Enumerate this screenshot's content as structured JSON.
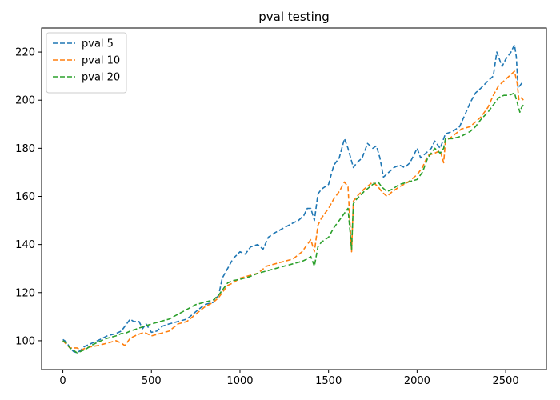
{
  "chart_data": {
    "type": "line",
    "title": "pval testing",
    "xlabel": "",
    "ylabel": "",
    "xlim": [
      -120,
      2730
    ],
    "ylim": [
      88,
      230
    ],
    "xticks": [
      0,
      500,
      1000,
      1500,
      2000,
      2500
    ],
    "yticks": [
      100,
      120,
      140,
      160,
      180,
      200,
      220
    ],
    "grid": false,
    "legend_position": "upper-left",
    "line_style": "dashed",
    "series": [
      {
        "name": "pval 5",
        "color": "#1f77b4",
        "points": [
          [
            0,
            100.5
          ],
          [
            20,
            99.5
          ],
          [
            40,
            97
          ],
          [
            60,
            95.5
          ],
          [
            80,
            95
          ],
          [
            100,
            96
          ],
          [
            120,
            97.5
          ],
          [
            150,
            98.5
          ],
          [
            180,
            99.5
          ],
          [
            210,
            100.5
          ],
          [
            250,
            102
          ],
          [
            300,
            103
          ],
          [
            330,
            104
          ],
          [
            350,
            106
          ],
          [
            380,
            109
          ],
          [
            400,
            108
          ],
          [
            430,
            108
          ],
          [
            450,
            105
          ],
          [
            470,
            107
          ],
          [
            500,
            103.5
          ],
          [
            530,
            104
          ],
          [
            560,
            106
          ],
          [
            600,
            107
          ],
          [
            650,
            108
          ],
          [
            700,
            109
          ],
          [
            750,
            112
          ],
          [
            800,
            115
          ],
          [
            850,
            116
          ],
          [
            880,
            119
          ],
          [
            900,
            126
          ],
          [
            930,
            130
          ],
          [
            960,
            134
          ],
          [
            1000,
            137
          ],
          [
            1030,
            136
          ],
          [
            1060,
            139
          ],
          [
            1100,
            140
          ],
          [
            1130,
            138
          ],
          [
            1160,
            143
          ],
          [
            1200,
            145
          ],
          [
            1250,
            147
          ],
          [
            1300,
            149
          ],
          [
            1330,
            150
          ],
          [
            1360,
            152
          ],
          [
            1380,
            155
          ],
          [
            1400,
            155
          ],
          [
            1420,
            150
          ],
          [
            1440,
            161
          ],
          [
            1460,
            163
          ],
          [
            1500,
            165
          ],
          [
            1530,
            173
          ],
          [
            1560,
            176
          ],
          [
            1590,
            184
          ],
          [
            1610,
            180
          ],
          [
            1640,
            172
          ],
          [
            1660,
            174
          ],
          [
            1690,
            176
          ],
          [
            1720,
            182
          ],
          [
            1750,
            180
          ],
          [
            1770,
            181
          ],
          [
            1790,
            176
          ],
          [
            1810,
            168
          ],
          [
            1840,
            170
          ],
          [
            1870,
            172
          ],
          [
            1900,
            173
          ],
          [
            1930,
            172
          ],
          [
            1960,
            174
          ],
          [
            2000,
            180
          ],
          [
            2020,
            176
          ],
          [
            2050,
            178
          ],
          [
            2080,
            180
          ],
          [
            2100,
            183
          ],
          [
            2130,
            180
          ],
          [
            2160,
            186
          ],
          [
            2200,
            187
          ],
          [
            2240,
            189
          ],
          [
            2270,
            194
          ],
          [
            2300,
            199
          ],
          [
            2330,
            203
          ],
          [
            2360,
            205
          ],
          [
            2400,
            208
          ],
          [
            2430,
            210
          ],
          [
            2450,
            220
          ],
          [
            2480,
            214
          ],
          [
            2500,
            217
          ],
          [
            2530,
            220
          ],
          [
            2550,
            223
          ],
          [
            2560,
            218
          ],
          [
            2570,
            205
          ],
          [
            2590,
            207
          ],
          [
            2600,
            206
          ]
        ]
      },
      {
        "name": "pval 10",
        "color": "#ff7f0e",
        "points": [
          [
            0,
            100
          ],
          [
            20,
            98.5
          ],
          [
            40,
            97
          ],
          [
            60,
            97
          ],
          [
            80,
            97
          ],
          [
            100,
            96
          ],
          [
            130,
            97
          ],
          [
            160,
            97.5
          ],
          [
            200,
            98
          ],
          [
            250,
            99
          ],
          [
            300,
            100
          ],
          [
            330,
            99
          ],
          [
            350,
            98
          ],
          [
            380,
            101
          ],
          [
            420,
            102.5
          ],
          [
            460,
            103.5
          ],
          [
            500,
            102
          ],
          [
            550,
            103
          ],
          [
            600,
            104
          ],
          [
            650,
            107
          ],
          [
            700,
            108
          ],
          [
            750,
            111
          ],
          [
            800,
            114
          ],
          [
            850,
            116
          ],
          [
            880,
            118
          ],
          [
            900,
            120
          ],
          [
            930,
            123
          ],
          [
            960,
            124
          ],
          [
            1000,
            126
          ],
          [
            1050,
            127
          ],
          [
            1100,
            128
          ],
          [
            1150,
            131
          ],
          [
            1200,
            132
          ],
          [
            1250,
            133
          ],
          [
            1300,
            134
          ],
          [
            1350,
            137
          ],
          [
            1380,
            140
          ],
          [
            1400,
            142
          ],
          [
            1420,
            137
          ],
          [
            1440,
            148
          ],
          [
            1460,
            151
          ],
          [
            1500,
            155
          ],
          [
            1530,
            159
          ],
          [
            1560,
            162
          ],
          [
            1590,
            166
          ],
          [
            1610,
            164
          ],
          [
            1630,
            137
          ],
          [
            1640,
            158
          ],
          [
            1660,
            160
          ],
          [
            1700,
            163
          ],
          [
            1750,
            166
          ],
          [
            1780,
            164
          ],
          [
            1800,
            162
          ],
          [
            1830,
            160
          ],
          [
            1860,
            162
          ],
          [
            1900,
            164
          ],
          [
            1950,
            166
          ],
          [
            2000,
            169
          ],
          [
            2030,
            172
          ],
          [
            2060,
            177
          ],
          [
            2100,
            178
          ],
          [
            2130,
            179
          ],
          [
            2150,
            174
          ],
          [
            2160,
            183
          ],
          [
            2200,
            185
          ],
          [
            2250,
            188
          ],
          [
            2300,
            189
          ],
          [
            2330,
            191
          ],
          [
            2360,
            193
          ],
          [
            2400,
            197
          ],
          [
            2430,
            202
          ],
          [
            2460,
            206
          ],
          [
            2490,
            208
          ],
          [
            2520,
            210
          ],
          [
            2550,
            212
          ],
          [
            2565,
            207
          ],
          [
            2575,
            200
          ],
          [
            2590,
            201
          ],
          [
            2600,
            200
          ]
        ]
      },
      {
        "name": "pval 20",
        "color": "#2ca02c",
        "points": [
          [
            0,
            100
          ],
          [
            20,
            99
          ],
          [
            40,
            97
          ],
          [
            60,
            96
          ],
          [
            80,
            95
          ],
          [
            100,
            95.5
          ],
          [
            130,
            96.5
          ],
          [
            160,
            98
          ],
          [
            200,
            99.5
          ],
          [
            250,
            101
          ],
          [
            300,
            102
          ],
          [
            330,
            103
          ],
          [
            350,
            103
          ],
          [
            380,
            104
          ],
          [
            420,
            105
          ],
          [
            460,
            106
          ],
          [
            500,
            107
          ],
          [
            550,
            108
          ],
          [
            600,
            109
          ],
          [
            650,
            111
          ],
          [
            700,
            113
          ],
          [
            750,
            115
          ],
          [
            800,
            116
          ],
          [
            850,
            117
          ],
          [
            880,
            119
          ],
          [
            900,
            121
          ],
          [
            930,
            124
          ],
          [
            960,
            125
          ],
          [
            1000,
            125.5
          ],
          [
            1050,
            126.5
          ],
          [
            1100,
            128
          ],
          [
            1150,
            129
          ],
          [
            1200,
            130
          ],
          [
            1250,
            131
          ],
          [
            1300,
            132
          ],
          [
            1350,
            133
          ],
          [
            1380,
            134
          ],
          [
            1400,
            135
          ],
          [
            1420,
            131
          ],
          [
            1440,
            139
          ],
          [
            1460,
            141
          ],
          [
            1500,
            143
          ],
          [
            1530,
            147
          ],
          [
            1560,
            150
          ],
          [
            1590,
            153
          ],
          [
            1610,
            155
          ],
          [
            1630,
            138
          ],
          [
            1640,
            157
          ],
          [
            1660,
            159
          ],
          [
            1700,
            162
          ],
          [
            1750,
            165
          ],
          [
            1780,
            166
          ],
          [
            1800,
            164
          ],
          [
            1830,
            162
          ],
          [
            1860,
            163
          ],
          [
            1900,
            165
          ],
          [
            1950,
            166
          ],
          [
            2000,
            167
          ],
          [
            2030,
            170
          ],
          [
            2060,
            176
          ],
          [
            2100,
            180
          ],
          [
            2130,
            178
          ],
          [
            2150,
            180
          ],
          [
            2160,
            184
          ],
          [
            2200,
            184
          ],
          [
            2250,
            185
          ],
          [
            2300,
            187
          ],
          [
            2330,
            189
          ],
          [
            2360,
            192
          ],
          [
            2400,
            195
          ],
          [
            2430,
            198
          ],
          [
            2460,
            201
          ],
          [
            2490,
            202
          ],
          [
            2520,
            202
          ],
          [
            2550,
            203
          ],
          [
            2565,
            199
          ],
          [
            2580,
            195
          ],
          [
            2590,
            197
          ],
          [
            2600,
            198
          ]
        ]
      }
    ]
  }
}
